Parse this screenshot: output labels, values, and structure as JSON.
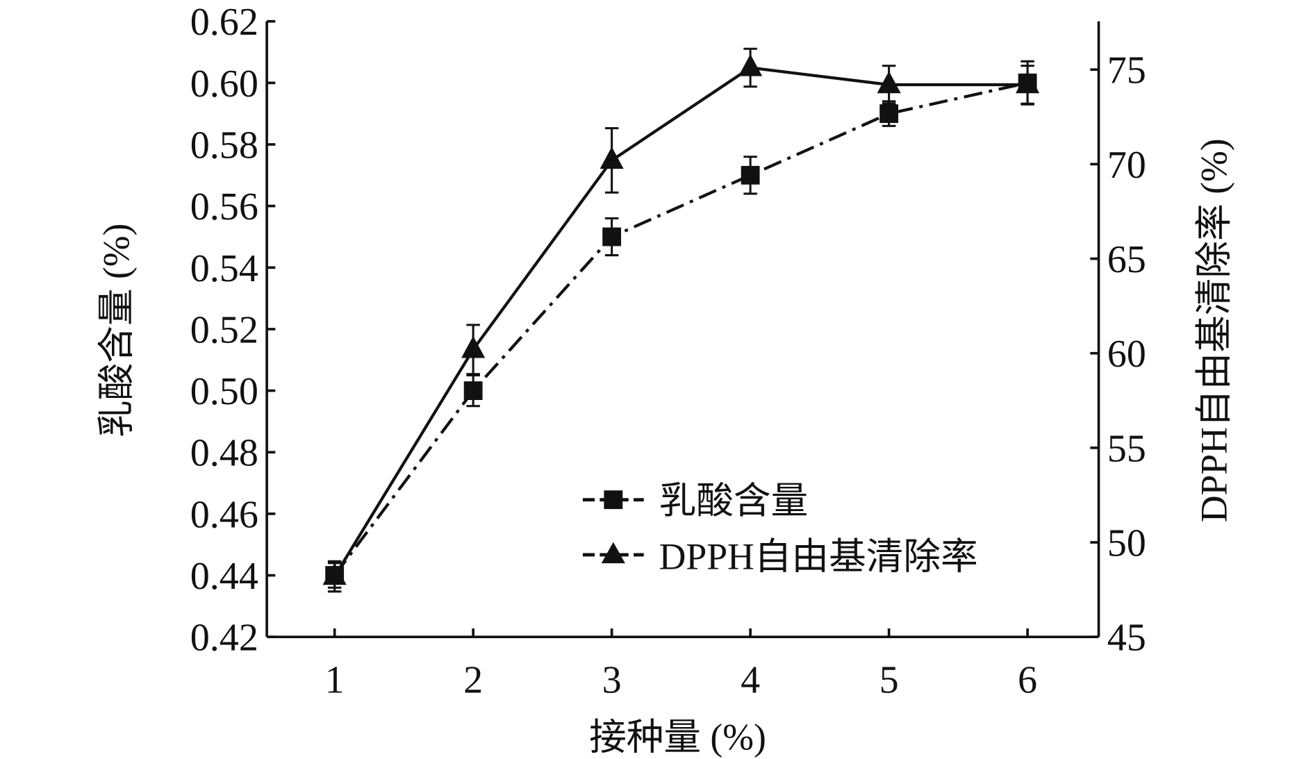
{
  "chart_data": {
    "type": "line",
    "xlabel": "接种量 (%)",
    "ylabel_left": "乳酸含量 (%)",
    "ylabel_right": "DPPH自由基清除率 (%)",
    "x": [
      1,
      2,
      3,
      4,
      5,
      6
    ],
    "x_ticks": [
      "1",
      "2",
      "3",
      "4",
      "5",
      "6"
    ],
    "ylim_left": [
      0.42,
      0.62
    ],
    "y_ticks_left": [
      "0.42",
      "0.44",
      "0.46",
      "0.48",
      "0.50",
      "0.52",
      "0.54",
      "0.56",
      "0.58",
      "0.60",
      "0.62"
    ],
    "ylim_right": [
      45,
      78
    ],
    "y_ticks_right": [
      "45",
      "50",
      "55",
      "60",
      "65",
      "70",
      "75"
    ],
    "grid": false,
    "legend_position": "bottom-right",
    "series": [
      {
        "name": "乳酸含量",
        "axis": "left",
        "marker": "square",
        "line": "dash-dot",
        "values": [
          0.44,
          0.5,
          0.55,
          0.57,
          0.59,
          0.6
        ],
        "errors": [
          0.004,
          0.005,
          0.006,
          0.006,
          0.004,
          0.007
        ]
      },
      {
        "name": "DPPH自由基清除率",
        "axis": "right",
        "marker": "triangle",
        "line": "solid",
        "values": [
          48.2,
          60.2,
          70.2,
          75.1,
          74.2,
          74.2
        ],
        "errors": [
          0.8,
          1.3,
          1.7,
          1.0,
          1.0,
          1.0
        ]
      }
    ],
    "color": "#111111"
  }
}
